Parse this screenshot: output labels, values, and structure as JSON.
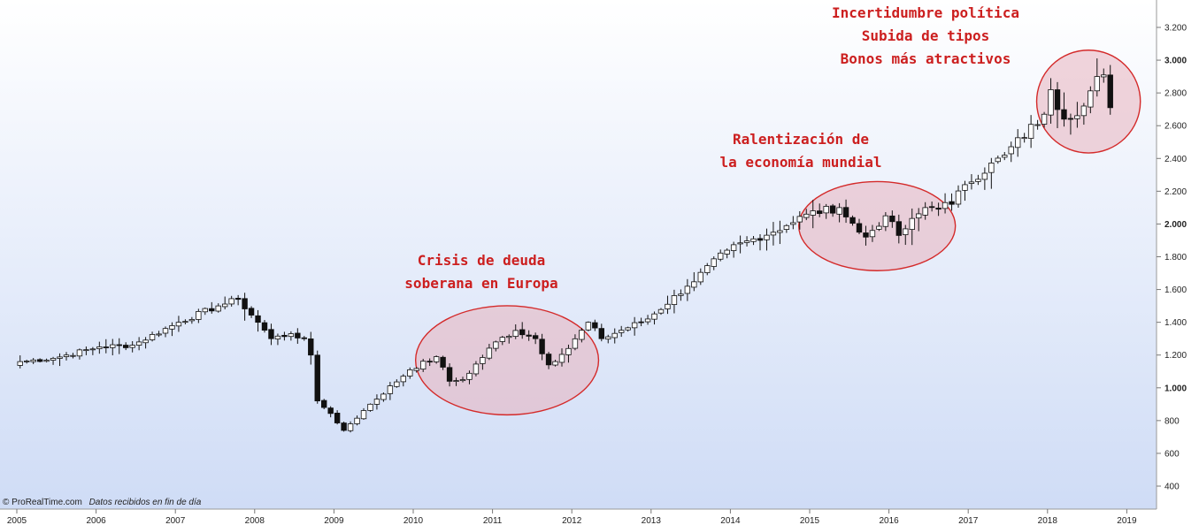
{
  "source": {
    "brand": "© ProRealTime.com",
    "note": "Datos recibidos en fin de día"
  },
  "colors": {
    "bg_top": "#ffffff",
    "bg_bottom": "#cfdcf6",
    "candle_up": "#ffffff",
    "candle_down": "#111111",
    "annotation": "#cc1f1f",
    "ellipse_fill": "#e8b3bd",
    "ellipse_stroke": "#d42a2a"
  },
  "annotations": [
    {
      "lines": [
        "Crisis de deuda",
        "soberana en Europa"
      ]
    },
    {
      "lines": [
        "Ralentización de",
        "la economía mundial"
      ]
    },
    {
      "lines": [
        "Incertidumbre política",
        "Subida de tipos",
        "Bonos más atractivos"
      ]
    }
  ],
  "chart_data": {
    "type": "candlestick",
    "frequency": "monthly",
    "x_tick_labels": [
      "2005",
      "2006",
      "2007",
      "2008",
      "2009",
      "2010",
      "2011",
      "2012",
      "2013",
      "2014",
      "2015",
      "2016",
      "2017",
      "2018",
      "2019"
    ],
    "y_tick_labels": [
      "400",
      "600",
      "800",
      "1.000",
      "1.200",
      "1.400",
      "1.600",
      "1.800",
      "2.000",
      "2.200",
      "2.400",
      "2.600",
      "2.800",
      "3.000",
      "3.200"
    ],
    "y_bold_ticks": [
      "1.000",
      "2.000",
      "3.000"
    ],
    "ylim": [
      250,
      3300
    ],
    "xlim": [
      "2005-01",
      "2019-03"
    ],
    "y_axis_side": "right",
    "highlighted_periods": [
      {
        "from": "2010-03",
        "to": "2011-12"
      },
      {
        "from": "2015-01",
        "to": "2016-06"
      },
      {
        "from": "2018-01",
        "to": "2019-01"
      }
    ],
    "anchor_closes": [
      [
        "2005-01",
        1160
      ],
      [
        "2005-06",
        1180
      ],
      [
        "2006-01",
        1250
      ],
      [
        "2006-06",
        1260
      ],
      [
        "2007-01",
        1400
      ],
      [
        "2007-07",
        1500
      ],
      [
        "2007-10",
        1540
      ],
      [
        "2008-01",
        1400
      ],
      [
        "2008-03",
        1300
      ],
      [
        "2008-06",
        1330
      ],
      [
        "2008-08",
        1300
      ],
      [
        "2008-09",
        1200
      ],
      [
        "2008-10",
        920
      ],
      [
        "2008-11",
        880
      ],
      [
        "2009-02",
        740
      ],
      [
        "2009-03",
        780
      ],
      [
        "2009-06",
        900
      ],
      [
        "2009-12",
        1110
      ],
      [
        "2010-04",
        1190
      ],
      [
        "2010-06",
        1040
      ],
      [
        "2010-08",
        1050
      ],
      [
        "2011-01",
        1280
      ],
      [
        "2011-04",
        1350
      ],
      [
        "2011-07",
        1300
      ],
      [
        "2011-09",
        1140
      ],
      [
        "2011-12",
        1240
      ],
      [
        "2012-03",
        1400
      ],
      [
        "2012-05",
        1300
      ],
      [
        "2012-12",
        1420
      ],
      [
        "2013-06",
        1620
      ],
      [
        "2013-12",
        1840
      ],
      [
        "2014-09",
        1990
      ],
      [
        "2014-12",
        2060
      ],
      [
        "2015-05",
        2100
      ],
      [
        "2015-08",
        1950
      ],
      [
        "2015-09",
        1920
      ],
      [
        "2015-12",
        2050
      ],
      [
        "2016-02",
        1930
      ],
      [
        "2016-06",
        2100
      ],
      [
        "2016-10",
        2120
      ],
      [
        "2016-12",
        2240
      ],
      [
        "2017-06",
        2420
      ],
      [
        "2017-12",
        2670
      ],
      [
        "2018-01",
        2820
      ],
      [
        "2018-03",
        2640
      ],
      [
        "2018-06",
        2720
      ],
      [
        "2018-08",
        2900
      ],
      [
        "2018-09",
        2910
      ],
      [
        "2018-10",
        2710
      ]
    ]
  }
}
